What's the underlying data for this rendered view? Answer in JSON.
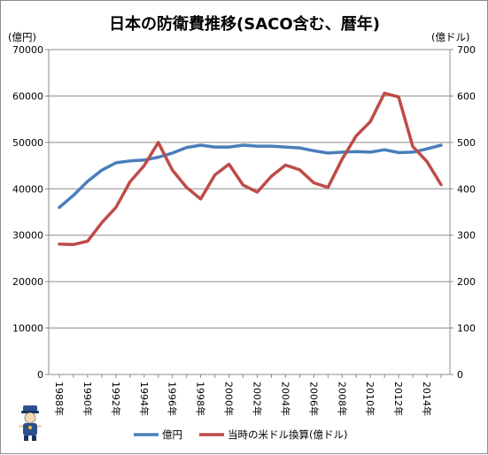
{
  "chart_data": {
    "type": "line",
    "title": "日本の防衛費推移(SACO含む、暦年)",
    "ylabel_left": "(億円)",
    "ylabel_right": "(億ドル)",
    "ylim_left": [
      0,
      70000
    ],
    "ylim_right": [
      0,
      700
    ],
    "yticks_left": [
      "0",
      "10000",
      "20000",
      "30000",
      "40000",
      "50000",
      "60000",
      "70000"
    ],
    "yticks_right": [
      "0",
      "100",
      "200",
      "300",
      "400",
      "500",
      "600",
      "700"
    ],
    "x": [
      1988,
      1989,
      1990,
      1991,
      1992,
      1993,
      1994,
      1995,
      1996,
      1997,
      1998,
      1999,
      2000,
      2001,
      2002,
      2003,
      2004,
      2005,
      2006,
      2007,
      2008,
      2009,
      2010,
      2011,
      2012,
      2013,
      2014,
      2015
    ],
    "x_tick_labels": [
      "1988年",
      "1990年",
      "1992年",
      "1994年",
      "1996年",
      "1998年",
      "2000年",
      "2002年",
      "2004年",
      "2006年",
      "2008年",
      "2010年",
      "2012年",
      "2014年"
    ],
    "grid": true,
    "legend_position": "bottom",
    "series": [
      {
        "name": "億円",
        "axis": "left",
        "color": "#4a7ebb",
        "values": [
          36000,
          38600,
          41600,
          44000,
          45600,
          46000,
          46200,
          46800,
          47700,
          48900,
          49400,
          49000,
          49000,
          49400,
          49200,
          49200,
          49000,
          48800,
          48200,
          47700,
          47900,
          48000,
          47900,
          48400,
          47800,
          47900,
          48600,
          49400
        ]
      },
      {
        "name": "当時の米ドル換算(億ドル)",
        "axis": "right",
        "color": "#be4b48",
        "values": [
          281,
          280,
          287,
          327,
          360,
          415,
          450,
          500,
          440,
          403,
          378,
          430,
          453,
          408,
          393,
          427,
          451,
          441,
          413,
          403,
          464,
          514,
          545,
          606,
          598,
          491,
          459,
          409
        ]
      }
    ]
  },
  "mascot_icon": "police-mascot-icon"
}
